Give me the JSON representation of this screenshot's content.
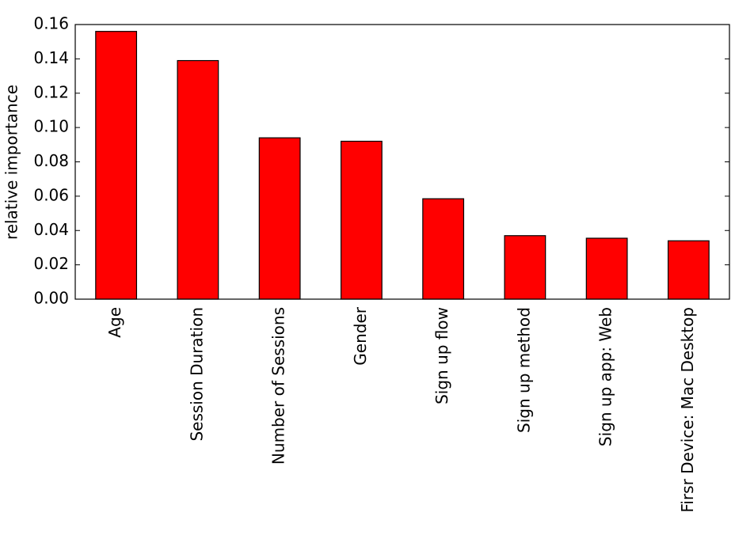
{
  "chart_data": {
    "type": "bar",
    "y_label": "relative importance",
    "categories": [
      "Age",
      "Session Duration",
      "Number of Sessions",
      "Gender",
      "Sign up flow",
      "Sign up method",
      "Sign up app: Web",
      "Firsr Device: Mac Desktop"
    ],
    "values": [
      0.156,
      0.139,
      0.094,
      0.092,
      0.0585,
      0.037,
      0.0355,
      0.034
    ],
    "color": "#ff0000",
    "ylim": [
      0,
      0.16
    ],
    "yticks": [
      {
        "value": 0,
        "label": "0.00"
      },
      0.02,
      0.04,
      0.06,
      0.08,
      {
        "value": 0.1,
        "label": "0.10"
      },
      0.12,
      0.14,
      0.16
    ],
    "grid": false
  }
}
